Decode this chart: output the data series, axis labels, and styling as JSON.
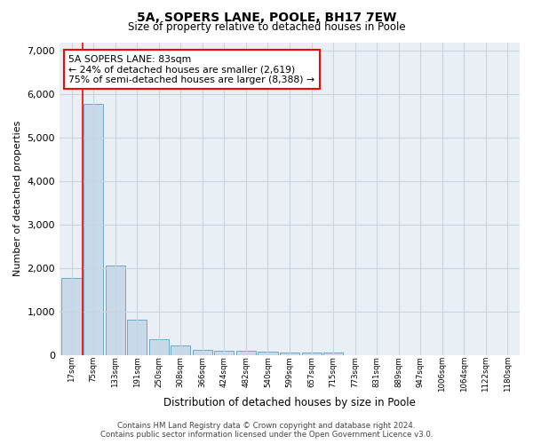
{
  "title_line1": "5A, SOPERS LANE, POOLE, BH17 7EW",
  "title_line2": "Size of property relative to detached houses in Poole",
  "xlabel": "Distribution of detached houses by size in Poole",
  "ylabel": "Number of detached properties",
  "bar_labels": [
    "17sqm",
    "75sqm",
    "133sqm",
    "191sqm",
    "250sqm",
    "308sqm",
    "366sqm",
    "424sqm",
    "482sqm",
    "540sqm",
    "599sqm",
    "657sqm",
    "715sqm",
    "773sqm",
    "831sqm",
    "889sqm",
    "947sqm",
    "1006sqm",
    "1064sqm",
    "1122sqm",
    "1180sqm"
  ],
  "bar_values": [
    1780,
    5780,
    2060,
    820,
    365,
    210,
    120,
    100,
    95,
    70,
    55,
    50,
    50,
    0,
    0,
    0,
    0,
    0,
    0,
    0,
    0
  ],
  "bar_color": "#c8daea",
  "bar_edge_color": "#6aaac8",
  "highlight_line_color": "red",
  "annotation_text": "5A SOPERS LANE: 83sqm\n← 24% of detached houses are smaller (2,619)\n75% of semi-detached houses are larger (8,388) →",
  "annotation_box_color": "white",
  "annotation_box_edge_color": "red",
  "ylim": [
    0,
    7200
  ],
  "yticks": [
    0,
    1000,
    2000,
    3000,
    4000,
    5000,
    6000,
    7000
  ],
  "grid_color": "#c8d4e0",
  "bg_color": "#eaeff5",
  "footer_line1": "Contains HM Land Registry data © Crown copyright and database right 2024.",
  "footer_line2": "Contains public sector information licensed under the Open Government Licence v3.0."
}
